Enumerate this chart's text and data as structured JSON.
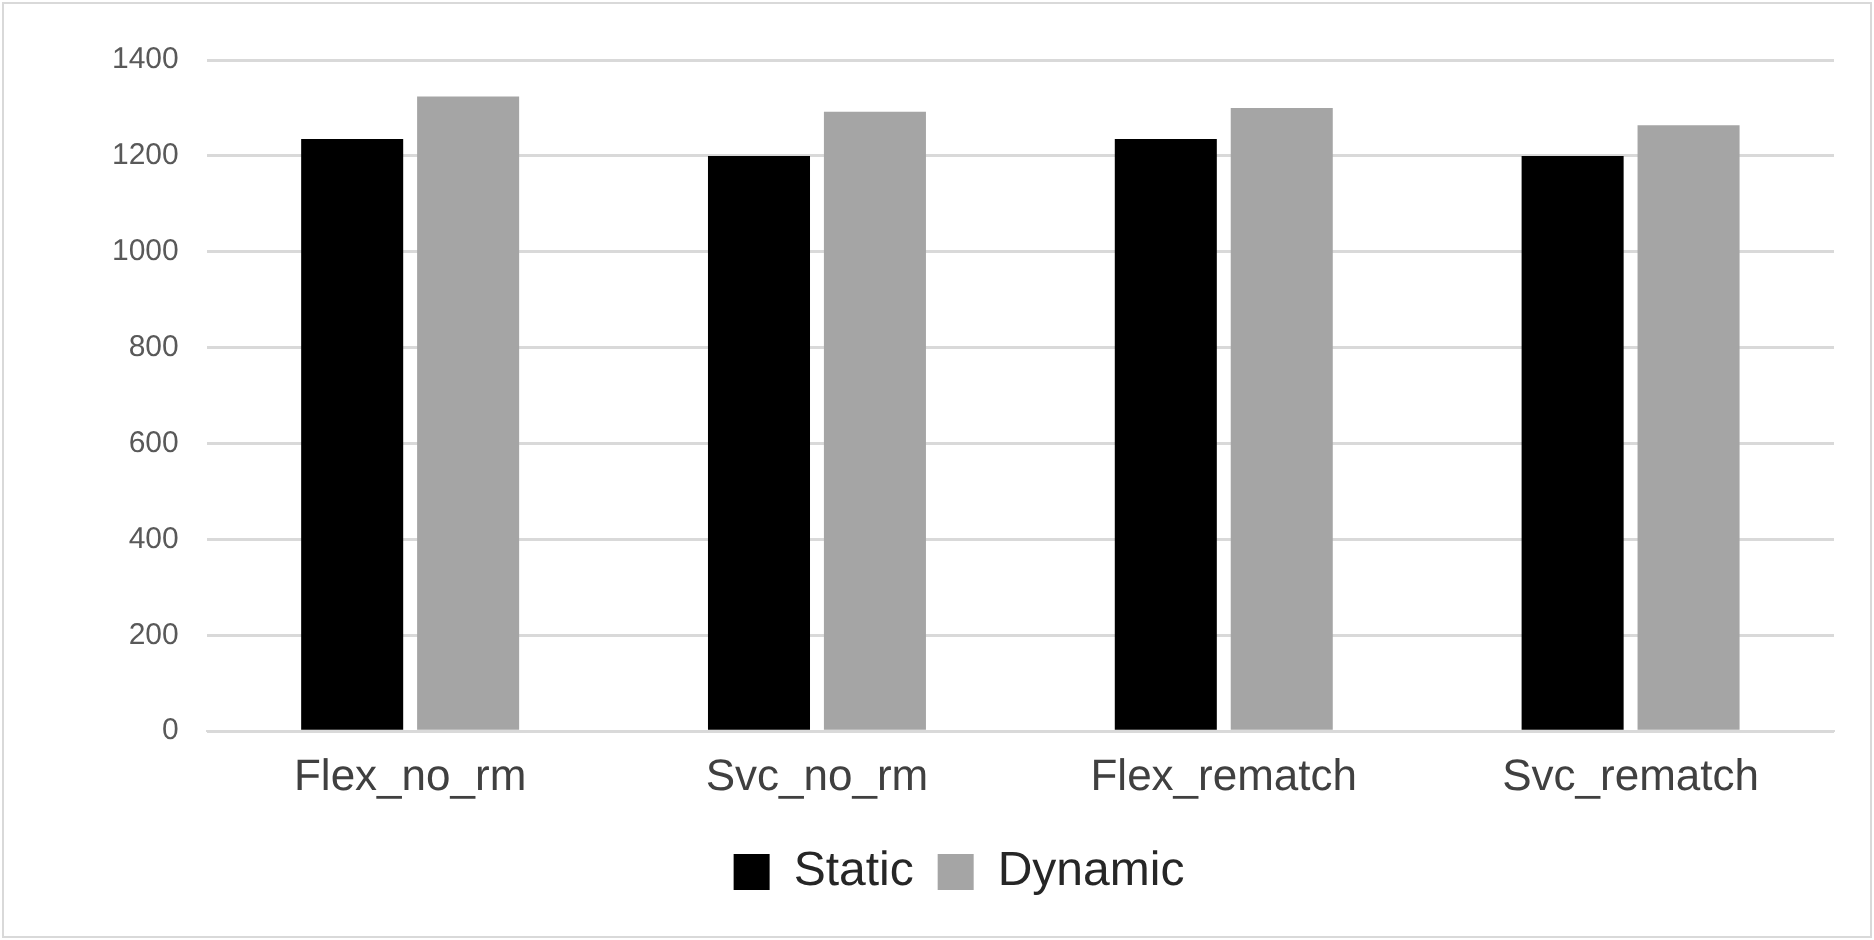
{
  "chart_data": {
    "type": "bar",
    "categories": [
      "Flex_no_rm",
      "Svc_no_rm",
      "Flex_rematch",
      "Svc_rematch"
    ],
    "series": [
      {
        "name": "Static",
        "color": "#000000",
        "values": [
          1235,
          1200,
          1235,
          1200
        ]
      },
      {
        "name": "Dynamic",
        "color": "#a5a5a5",
        "values": [
          1324,
          1292,
          1300,
          1264
        ]
      }
    ],
    "ylim": [
      0,
      1400
    ],
    "yticks": [
      0,
      200,
      400,
      600,
      800,
      1000,
      1200,
      1400
    ],
    "grid": "y",
    "legend": "bottom"
  }
}
